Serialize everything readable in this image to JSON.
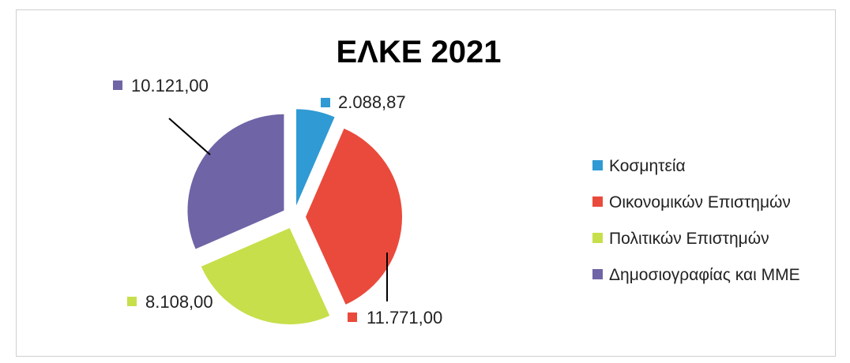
{
  "chart_data": {
    "type": "pie",
    "title": "ΕΛΚΕ 2021",
    "categories": [
      "Κοσμητεία",
      "Οικονομικών Επιστημών",
      "Πολιτικών Επιστημών",
      "Δημοσιογραφίας και ΜΜΕ"
    ],
    "values": [
      2088.87,
      11771.0,
      8108.0,
      10121.0
    ],
    "data_labels": [
      "2.088,87",
      "11.771,00",
      "8.108,00",
      "10.121,00"
    ],
    "colors": [
      "#2f9ad3",
      "#ea4a3b",
      "#c7df4a",
      "#6f64a6"
    ],
    "legend_position": "right",
    "exploded": true
  }
}
